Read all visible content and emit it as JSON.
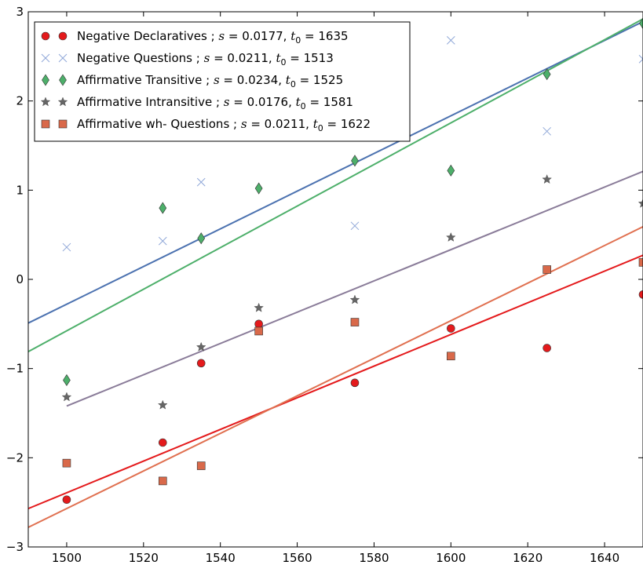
{
  "chart_data": {
    "type": "scatter",
    "title": "",
    "xlabel": "",
    "ylabel": "",
    "xlim": [
      1490,
      1650
    ],
    "ylim": [
      -3,
      3
    ],
    "x_ticks": [
      1500,
      1520,
      1540,
      1560,
      1580,
      1600,
      1620,
      1640
    ],
    "y_ticks": [
      -3,
      -2,
      -1,
      0,
      1,
      2,
      3
    ],
    "x_tick_labels": [
      "1500",
      "1520",
      "1540",
      "1560",
      "1580",
      "1600",
      "1620",
      "1640"
    ],
    "y_tick_labels": [
      "−3",
      "−2",
      "−1",
      "0",
      "1",
      "2",
      "3"
    ],
    "grid": false,
    "legend_position": "top-left",
    "series": [
      {
        "name": "Negative Declaratives",
        "legend_label": "Negative Declaratives ; s = 0.0177, t₀ = 1635",
        "label_text": "Negative Declaratives ; ",
        "s_text": "s",
        "s_value_text": " = 0.0177, ",
        "t_text": "t",
        "t_sub": "0",
        "t_value_text": " = 1635",
        "marker": "circle",
        "color": "#e41a1c",
        "line_color": "#e41a1c",
        "points": [
          [
            1500,
            -2.47
          ],
          [
            1525,
            -1.83
          ],
          [
            1535,
            -0.94
          ],
          [
            1550,
            -0.5
          ],
          [
            1575,
            -1.16
          ],
          [
            1600,
            -0.55
          ],
          [
            1625,
            -0.77
          ],
          [
            1650,
            -0.17
          ]
        ],
        "fit": {
          "x": [
            1490,
            1650
          ],
          "y": [
            -2.57,
            0.27
          ]
        }
      },
      {
        "name": "Negative Questions",
        "legend_label": "Negative Questions ; s = 0.0211, t₀ = 1513",
        "label_text": "Negative Questions ; ",
        "s_text": "s",
        "s_value_text": " = 0.0211, ",
        "t_text": "t",
        "t_sub": "0",
        "t_value_text": " = 1513",
        "marker": "x",
        "color": "#8fa7d8",
        "line_color": "#4c72b0",
        "points": [
          [
            1500,
            0.36
          ],
          [
            1525,
            0.43
          ],
          [
            1535,
            1.09
          ],
          [
            1575,
            0.6
          ],
          [
            1600,
            2.68
          ],
          [
            1625,
            1.66
          ],
          [
            1650,
            2.47
          ]
        ],
        "fit": {
          "x": [
            1490,
            1650
          ],
          "y": [
            -0.49,
            2.89
          ]
        }
      },
      {
        "name": "Affirmative Transitive",
        "legend_label": "Affirmative Transitive ; s = 0.0234, t₀ = 1525",
        "label_text": "Affirmative Transitive ; ",
        "s_text": "s",
        "s_value_text": " = 0.0234, ",
        "t_text": "t",
        "t_sub": "0",
        "t_value_text": " = 1525",
        "marker": "diamond",
        "color": "#4daf6a",
        "line_color": "#4daf6a",
        "points": [
          [
            1500,
            -1.13
          ],
          [
            1525,
            0.8
          ],
          [
            1535,
            0.46
          ],
          [
            1550,
            1.02
          ],
          [
            1575,
            1.33
          ],
          [
            1600,
            1.22
          ],
          [
            1625,
            2.3
          ],
          [
            1650,
            2.87
          ]
        ],
        "fit": {
          "x": [
            1490,
            1650
          ],
          "y": [
            -0.81,
            2.92
          ]
        }
      },
      {
        "name": "Affirmative Intransitive",
        "legend_label": "Affirmative Intransitive ; s = 0.0176, t₀ = 1581",
        "label_text": "Affirmative Intransitive ; ",
        "s_text": "s",
        "s_value_text": " = 0.0176, ",
        "t_text": "t",
        "t_sub": "0",
        "t_value_text": " = 1581",
        "marker": "star",
        "color": "#666666",
        "line_color": "#8a7c99",
        "points": [
          [
            1500,
            -1.32
          ],
          [
            1525,
            -1.41
          ],
          [
            1535,
            -0.76
          ],
          [
            1550,
            -0.32
          ],
          [
            1575,
            -0.23
          ],
          [
            1600,
            0.47
          ],
          [
            1625,
            1.12
          ],
          [
            1650,
            0.85
          ]
        ],
        "fit": {
          "x": [
            1500,
            1650
          ],
          "y": [
            -1.42,
            1.21
          ]
        }
      },
      {
        "name": "Affirmative wh- Questions",
        "legend_label": "Affirmative wh- Questions ; s = 0.0211, t₀ = 1622",
        "label_text": "Affirmative wh- Questions ; ",
        "s_text": "s",
        "s_value_text": " = 0.0211, ",
        "t_text": "t",
        "t_sub": "0",
        "t_value_text": " = 1622",
        "marker": "square",
        "color": "#d9694a",
        "line_color": "#e07050",
        "points": [
          [
            1500,
            -2.06
          ],
          [
            1525,
            -2.26
          ],
          [
            1535,
            -2.09
          ],
          [
            1550,
            -0.58
          ],
          [
            1575,
            -0.48
          ],
          [
            1600,
            -0.86
          ],
          [
            1625,
            0.11
          ],
          [
            1650,
            0.19
          ]
        ],
        "fit": {
          "x": [
            1490,
            1650
          ],
          "y": [
            -2.78,
            0.59
          ]
        }
      }
    ]
  }
}
